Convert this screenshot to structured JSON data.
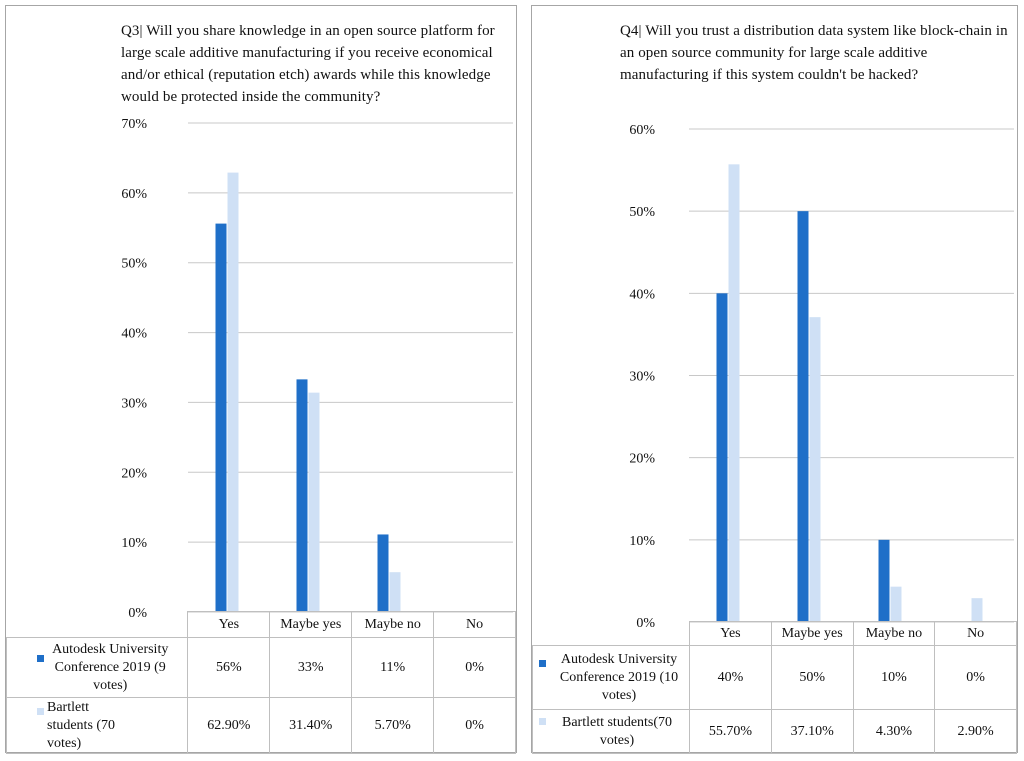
{
  "chart_data": [
    {
      "type": "bar",
      "title": "Q3| Will you share knowledge in an open source platform for large scale additive manufacturing if you receive economical and/or ethical (reputation etch) awards while this knowledge would be protected inside the community?",
      "categories": [
        "Yes",
        "Maybe yes",
        "Maybe no",
        "No"
      ],
      "ylim": [
        0,
        0.7
      ],
      "yticks": [
        0,
        0.1,
        0.2,
        0.3,
        0.4,
        0.5,
        0.6,
        0.7
      ],
      "ytick_labels": [
        "0%",
        "10%",
        "20%",
        "30%",
        "40%",
        "50%",
        "60%",
        "70%"
      ],
      "grid": true,
      "legend": "data table",
      "series": [
        {
          "name": "Autodesk University Conference 2019 (9 votes)",
          "color": "#1f6fc8",
          "values": [
            0.556,
            0.333,
            0.111,
            0
          ],
          "table_labels": [
            "56%",
            "33%",
            "11%",
            "0%"
          ]
        },
        {
          "name": "Bartlett students (70 votes)",
          "color": "#cfe0f5",
          "values": [
            0.629,
            0.314,
            0.057,
            0
          ],
          "table_labels": [
            "62.90%",
            "31.40%",
            "5.70%",
            "0%"
          ]
        }
      ]
    },
    {
      "type": "bar",
      "title": "Q4| Will you trust a distribution data system like block-chain in an open source community for large scale additive manufacturing if this system couldn't be hacked?",
      "categories": [
        "Yes",
        "Maybe yes",
        "Maybe no",
        "No"
      ],
      "ylim": [
        0,
        0.6
      ],
      "yticks": [
        0,
        0.1,
        0.2,
        0.3,
        0.4,
        0.5,
        0.6
      ],
      "ytick_labels": [
        "0%",
        "10%",
        "20%",
        "30%",
        "40%",
        "50%",
        "60%"
      ],
      "grid": true,
      "legend": "data table",
      "series": [
        {
          "name": "Autodesk University Conference 2019 (10 votes)",
          "color": "#1f6fc8",
          "values": [
            0.4,
            0.5,
            0.1,
            0
          ],
          "table_labels": [
            "40%",
            "50%",
            "10%",
            "0%"
          ]
        },
        {
          "name": "Bartlett students(70 votes)",
          "color": "#cfe0f5",
          "values": [
            0.557,
            0.371,
            0.043,
            0.029
          ],
          "table_labels": [
            "55.70%",
            "37.10%",
            "4.30%",
            "2.90%"
          ]
        }
      ]
    }
  ]
}
